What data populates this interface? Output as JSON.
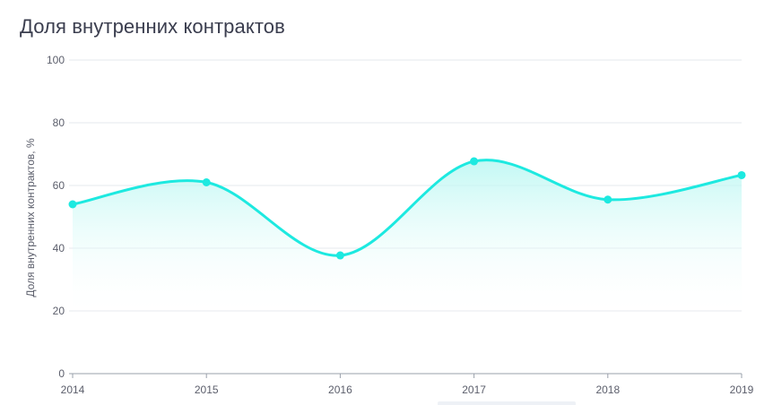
{
  "chart_data": {
    "type": "area",
    "title": "Доля внутренних контрактов",
    "ylabel": "Доля внутренних контрактов, %",
    "xlabel": "",
    "x": [
      "2014",
      "2015",
      "2016",
      "2017",
      "2018",
      "2019"
    ],
    "series": [
      {
        "values": [
          54,
          61,
          37.7,
          67.7,
          55.5,
          63.3
        ]
      }
    ],
    "ylim": [
      0,
      100
    ],
    "yticks": [
      "0",
      "20",
      "40",
      "60",
      "80",
      "100"
    ],
    "grid": true,
    "legend": "none",
    "colors": {
      "line": "#1de9e0",
      "marker": "#1de9e0",
      "area_top": "#b8f7f2",
      "area_bottom": "#ffffff"
    }
  }
}
